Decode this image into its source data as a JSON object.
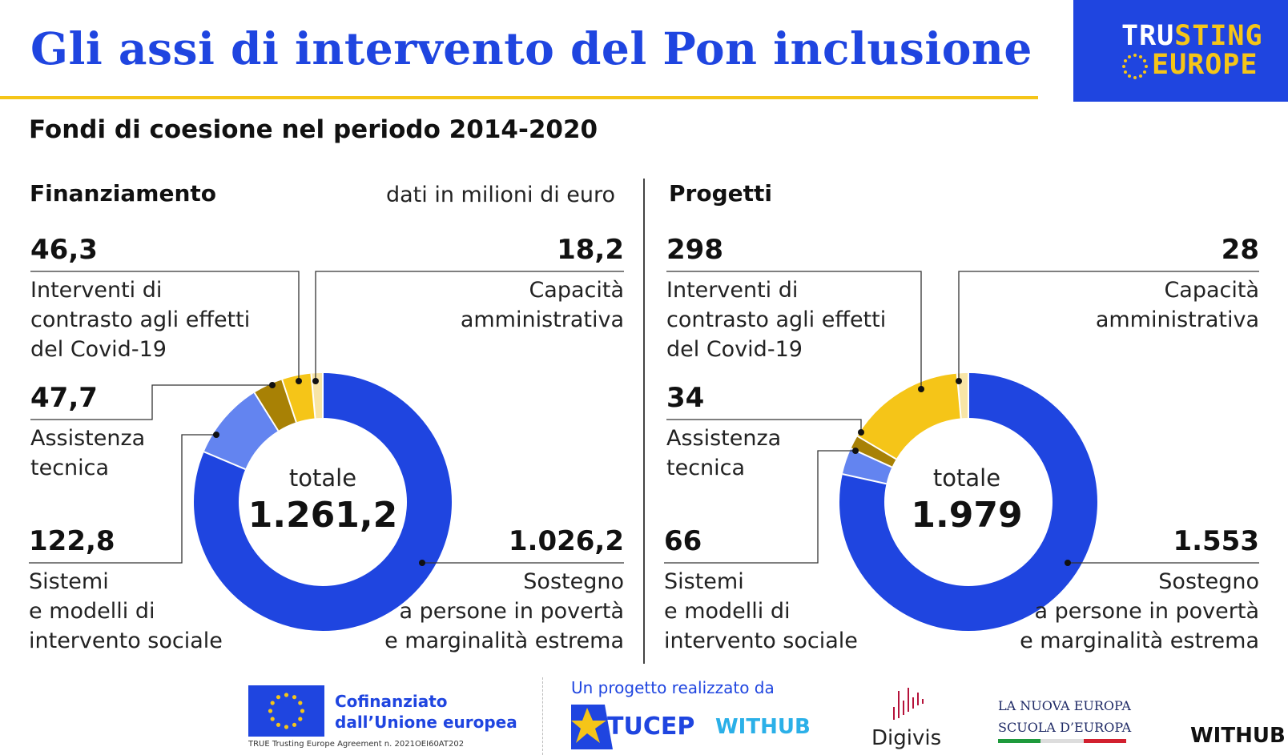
{
  "header": {
    "title": "Gli assi di intervento del Pon inclusione",
    "brand_line1_a": "TRU",
    "brand_line1_b": "STING",
    "brand_line2": "EUROPE",
    "subtitle": "Fondi di coesione nel periodo 2014-2020"
  },
  "colors": {
    "title_blue": "#1f45e0",
    "accent_yellow": "#f5c518",
    "seg_sostegno": "#1f45e0",
    "seg_sistemi": "#6384f0",
    "seg_assistenza": "#a88105",
    "seg_covid": "#f5c518",
    "seg_capacita": "#f8e5a6"
  },
  "panels": {
    "finanziamento": {
      "heading": "Finanziamento",
      "units": "dati in milioni di euro",
      "total_label": "totale",
      "total_value": "1.261,2",
      "items": {
        "covid": {
          "value": "46,3",
          "label_lines": [
            "Interventi di",
            "contrasto agli effetti",
            "del Covid-19"
          ]
        },
        "capacita": {
          "value": "18,2",
          "label_lines": [
            "Capacità",
            "amministrativa"
          ]
        },
        "assistenza": {
          "value": "47,7",
          "label_lines": [
            "Assistenza",
            "tecnica"
          ]
        },
        "sistemi": {
          "value": "122,8",
          "label_lines": [
            "Sistemi",
            "e modelli di",
            "intervento sociale"
          ]
        },
        "sostegno": {
          "value": "1.026,2",
          "label_lines": [
            "Sostegno",
            "a persone in povertà",
            "e marginalità estrema"
          ]
        }
      }
    },
    "progetti": {
      "heading": "Progetti",
      "total_label": "totale",
      "total_value": "1.979",
      "items": {
        "covid": {
          "value": "298",
          "label_lines": [
            "Interventi di",
            "contrasto agli effetti",
            "del Covid-19"
          ]
        },
        "capacita": {
          "value": "28",
          "label_lines": [
            "Capacità",
            "amministrativa"
          ]
        },
        "assistenza": {
          "value": "34",
          "label_lines": [
            "Assistenza",
            "tecnica"
          ]
        },
        "sistemi": {
          "value": "66",
          "label_lines": [
            "Sistemi",
            "e modelli di",
            "intervento sociale"
          ]
        },
        "sostegno": {
          "value": "1.553",
          "label_lines": [
            "Sostegno",
            "a persone in povertà",
            "e marginalità estrema"
          ]
        }
      }
    }
  },
  "chart_data": [
    {
      "type": "pie",
      "title": "Finanziamento",
      "units": "dati in milioni di euro",
      "total": 1261.2,
      "slices": [
        {
          "name": "Sostegno a persone in povertà e marginalità estrema",
          "value": 1026.2
        },
        {
          "name": "Sistemi e modelli di intervento sociale",
          "value": 122.8
        },
        {
          "name": "Assistenza tecnica",
          "value": 47.7
        },
        {
          "name": "Interventi di contrasto agli effetti del Covid-19",
          "value": 46.3
        },
        {
          "name": "Capacità amministrativa",
          "value": 18.2
        }
      ]
    },
    {
      "type": "pie",
      "title": "Progetti",
      "total": 1979,
      "slices": [
        {
          "name": "Sostegno a persone in povertà e marginalità estrema",
          "value": 1553
        },
        {
          "name": "Sistemi e modelli di intervento sociale",
          "value": 66
        },
        {
          "name": "Assistenza tecnica",
          "value": 34
        },
        {
          "name": "Interventi di contrasto agli effetti del Covid-19",
          "value": 298
        },
        {
          "name": "Capacità amministrativa",
          "value": 28
        }
      ]
    }
  ],
  "footer": {
    "eu_line1": "Cofinanziato",
    "eu_line2": "dall’Unione europea",
    "eu_agreement": "TRUE Trusting Europe Agreement n. 2021OEI60AT202",
    "realized_by": "Un progetto realizzato da",
    "tucep": "TUCEP",
    "withhub_color": "WITHUB",
    "digivis": "Digivis",
    "nuova_line1": "LA NUOVA EUROPA",
    "nuova_line2": "SCUOLA D’EUROPA",
    "withhub_black": "WITHUB"
  }
}
